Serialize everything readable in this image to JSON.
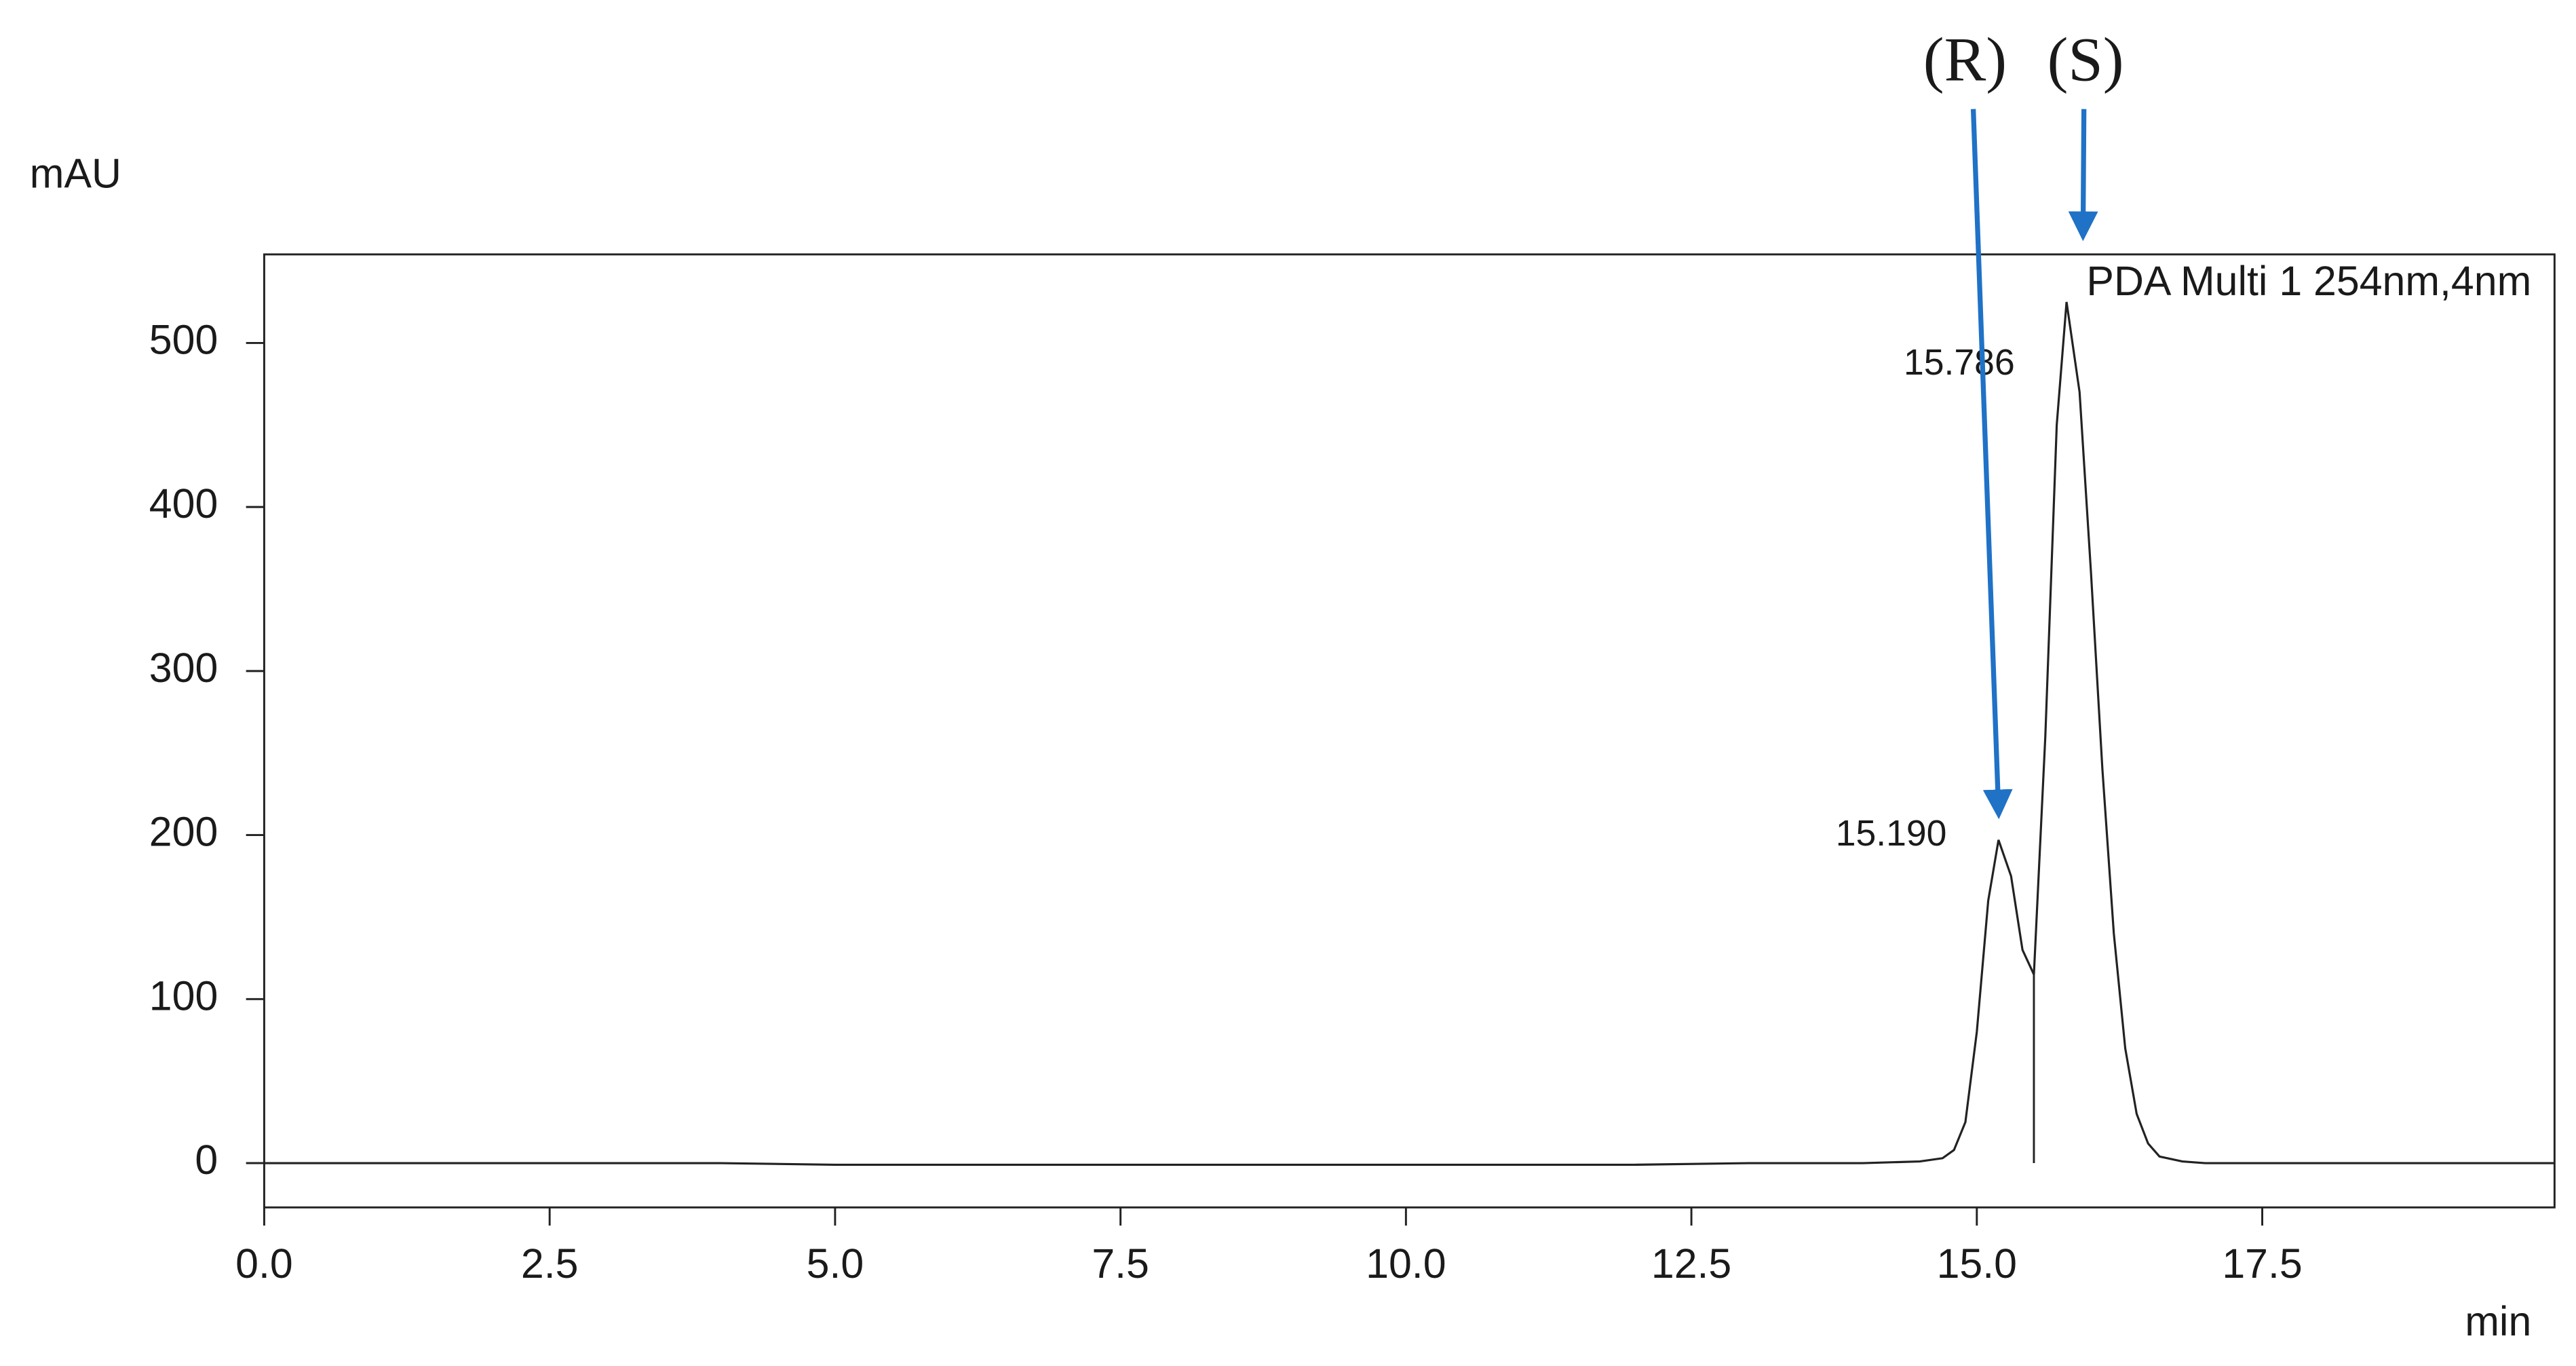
{
  "chart_data": {
    "type": "line",
    "ylabel": "mAU",
    "xlabel": "min",
    "legend": "PDA Multi 1 254nm,4nm",
    "x": [
      0,
      2,
      4,
      5,
      6,
      8,
      10,
      12,
      13,
      14,
      14.5,
      14.7,
      14.8,
      14.9,
      15.0,
      15.1,
      15.19,
      15.3,
      15.4,
      15.5,
      15.6,
      15.7,
      15.786,
      15.9,
      16.0,
      16.1,
      16.2,
      16.3,
      16.4,
      16.5,
      16.6,
      16.8,
      17,
      18,
      20.06
    ],
    "series": [
      {
        "color": "#222222",
        "values": [
          0,
          0,
          0,
          -1,
          -1,
          -1,
          -1,
          -1,
          0,
          0,
          1,
          3,
          8,
          25,
          80,
          160,
          197,
          175,
          130,
          115,
          260,
          450,
          525,
          470,
          360,
          240,
          140,
          70,
          30,
          12,
          4,
          1,
          0,
          0,
          0
        ]
      }
    ],
    "peaks": [
      {
        "time": {
          "value": 15.19,
          "label": "15.190"
        },
        "name": "(R)"
      },
      {
        "time": {
          "value": 15.786,
          "label": "15.786"
        },
        "name": "(S)"
      }
    ],
    "arrow_color": "#1f72c6",
    "xlim": [
      0,
      20.06
    ],
    "ylim": [
      -27,
      554
    ],
    "xticks": [
      {
        "value": 0,
        "label": "0.0"
      },
      2.5,
      {
        "value": 5,
        "label": "5.0"
      },
      7.5,
      {
        "value": 10,
        "label": "10.0"
      },
      12.5,
      {
        "value": 15,
        "label": "15.0"
      },
      17.5
    ],
    "yticks": [
      0,
      100,
      200,
      300,
      400,
      500
    ]
  }
}
